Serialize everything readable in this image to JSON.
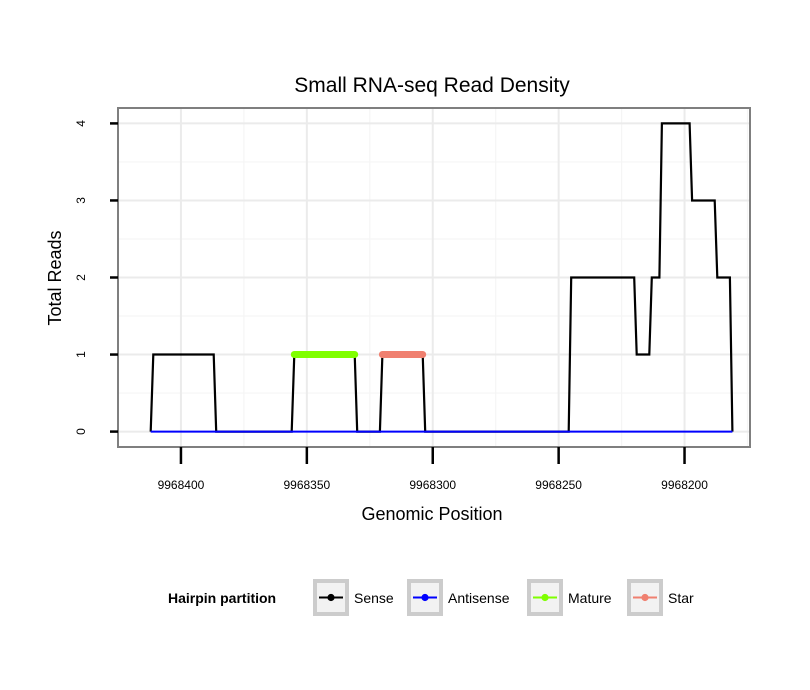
{
  "chart_data": {
    "type": "line",
    "title": "Small RNA-seq Read Density",
    "xlabel": "Genomic Position",
    "ylabel": "Total Reads",
    "xlim": [
      9968425,
      9968174
    ],
    "ylim": [
      -0.2,
      4.2
    ],
    "x_reversed": true,
    "x_ticks": [
      9968400,
      9968350,
      9968300,
      9968250,
      9968200
    ],
    "x_tick_labels": [
      "9968400",
      "9968350",
      "9968300",
      "9968250",
      "9968200"
    ],
    "y_ticks": [
      0,
      1,
      2,
      3,
      4
    ],
    "y_tick_labels": [
      "0",
      "1",
      "2",
      "3",
      "4"
    ],
    "grid": true,
    "legend": {
      "title": "Hairpin partition",
      "position": "bottom",
      "entries": [
        "Sense",
        "Antisense",
        "Mature",
        "Star"
      ]
    },
    "series": [
      {
        "name": "Sense",
        "color": "#000000",
        "x": [
          9968412,
          9968411,
          9968387,
          9968386,
          9968356,
          9968355,
          9968331,
          9968330,
          9968321,
          9968320,
          9968304,
          9968303,
          9968246,
          9968245,
          9968220,
          9968219,
          9968214,
          9968213,
          9968210,
          9968209,
          9968198,
          9968197,
          9968188,
          9968187,
          9968182,
          9968181
        ],
        "y": [
          0,
          1,
          1,
          0,
          0,
          1,
          1,
          0,
          0,
          1,
          1,
          0,
          0,
          2,
          2,
          1,
          1,
          2,
          2,
          4,
          4,
          3,
          3,
          2,
          2,
          0
        ]
      },
      {
        "name": "Antisense",
        "color": "#0000ff",
        "x": [
          9968412,
          9968181
        ],
        "y": [
          0,
          0
        ]
      },
      {
        "name": "Mature",
        "color": "#7fff00",
        "x": [
          9968355,
          9968331
        ],
        "y": [
          1,
          1
        ]
      },
      {
        "name": "Star",
        "color": "#f08070",
        "x": [
          9968320,
          9968304
        ],
        "y": [
          1,
          1
        ]
      }
    ]
  }
}
